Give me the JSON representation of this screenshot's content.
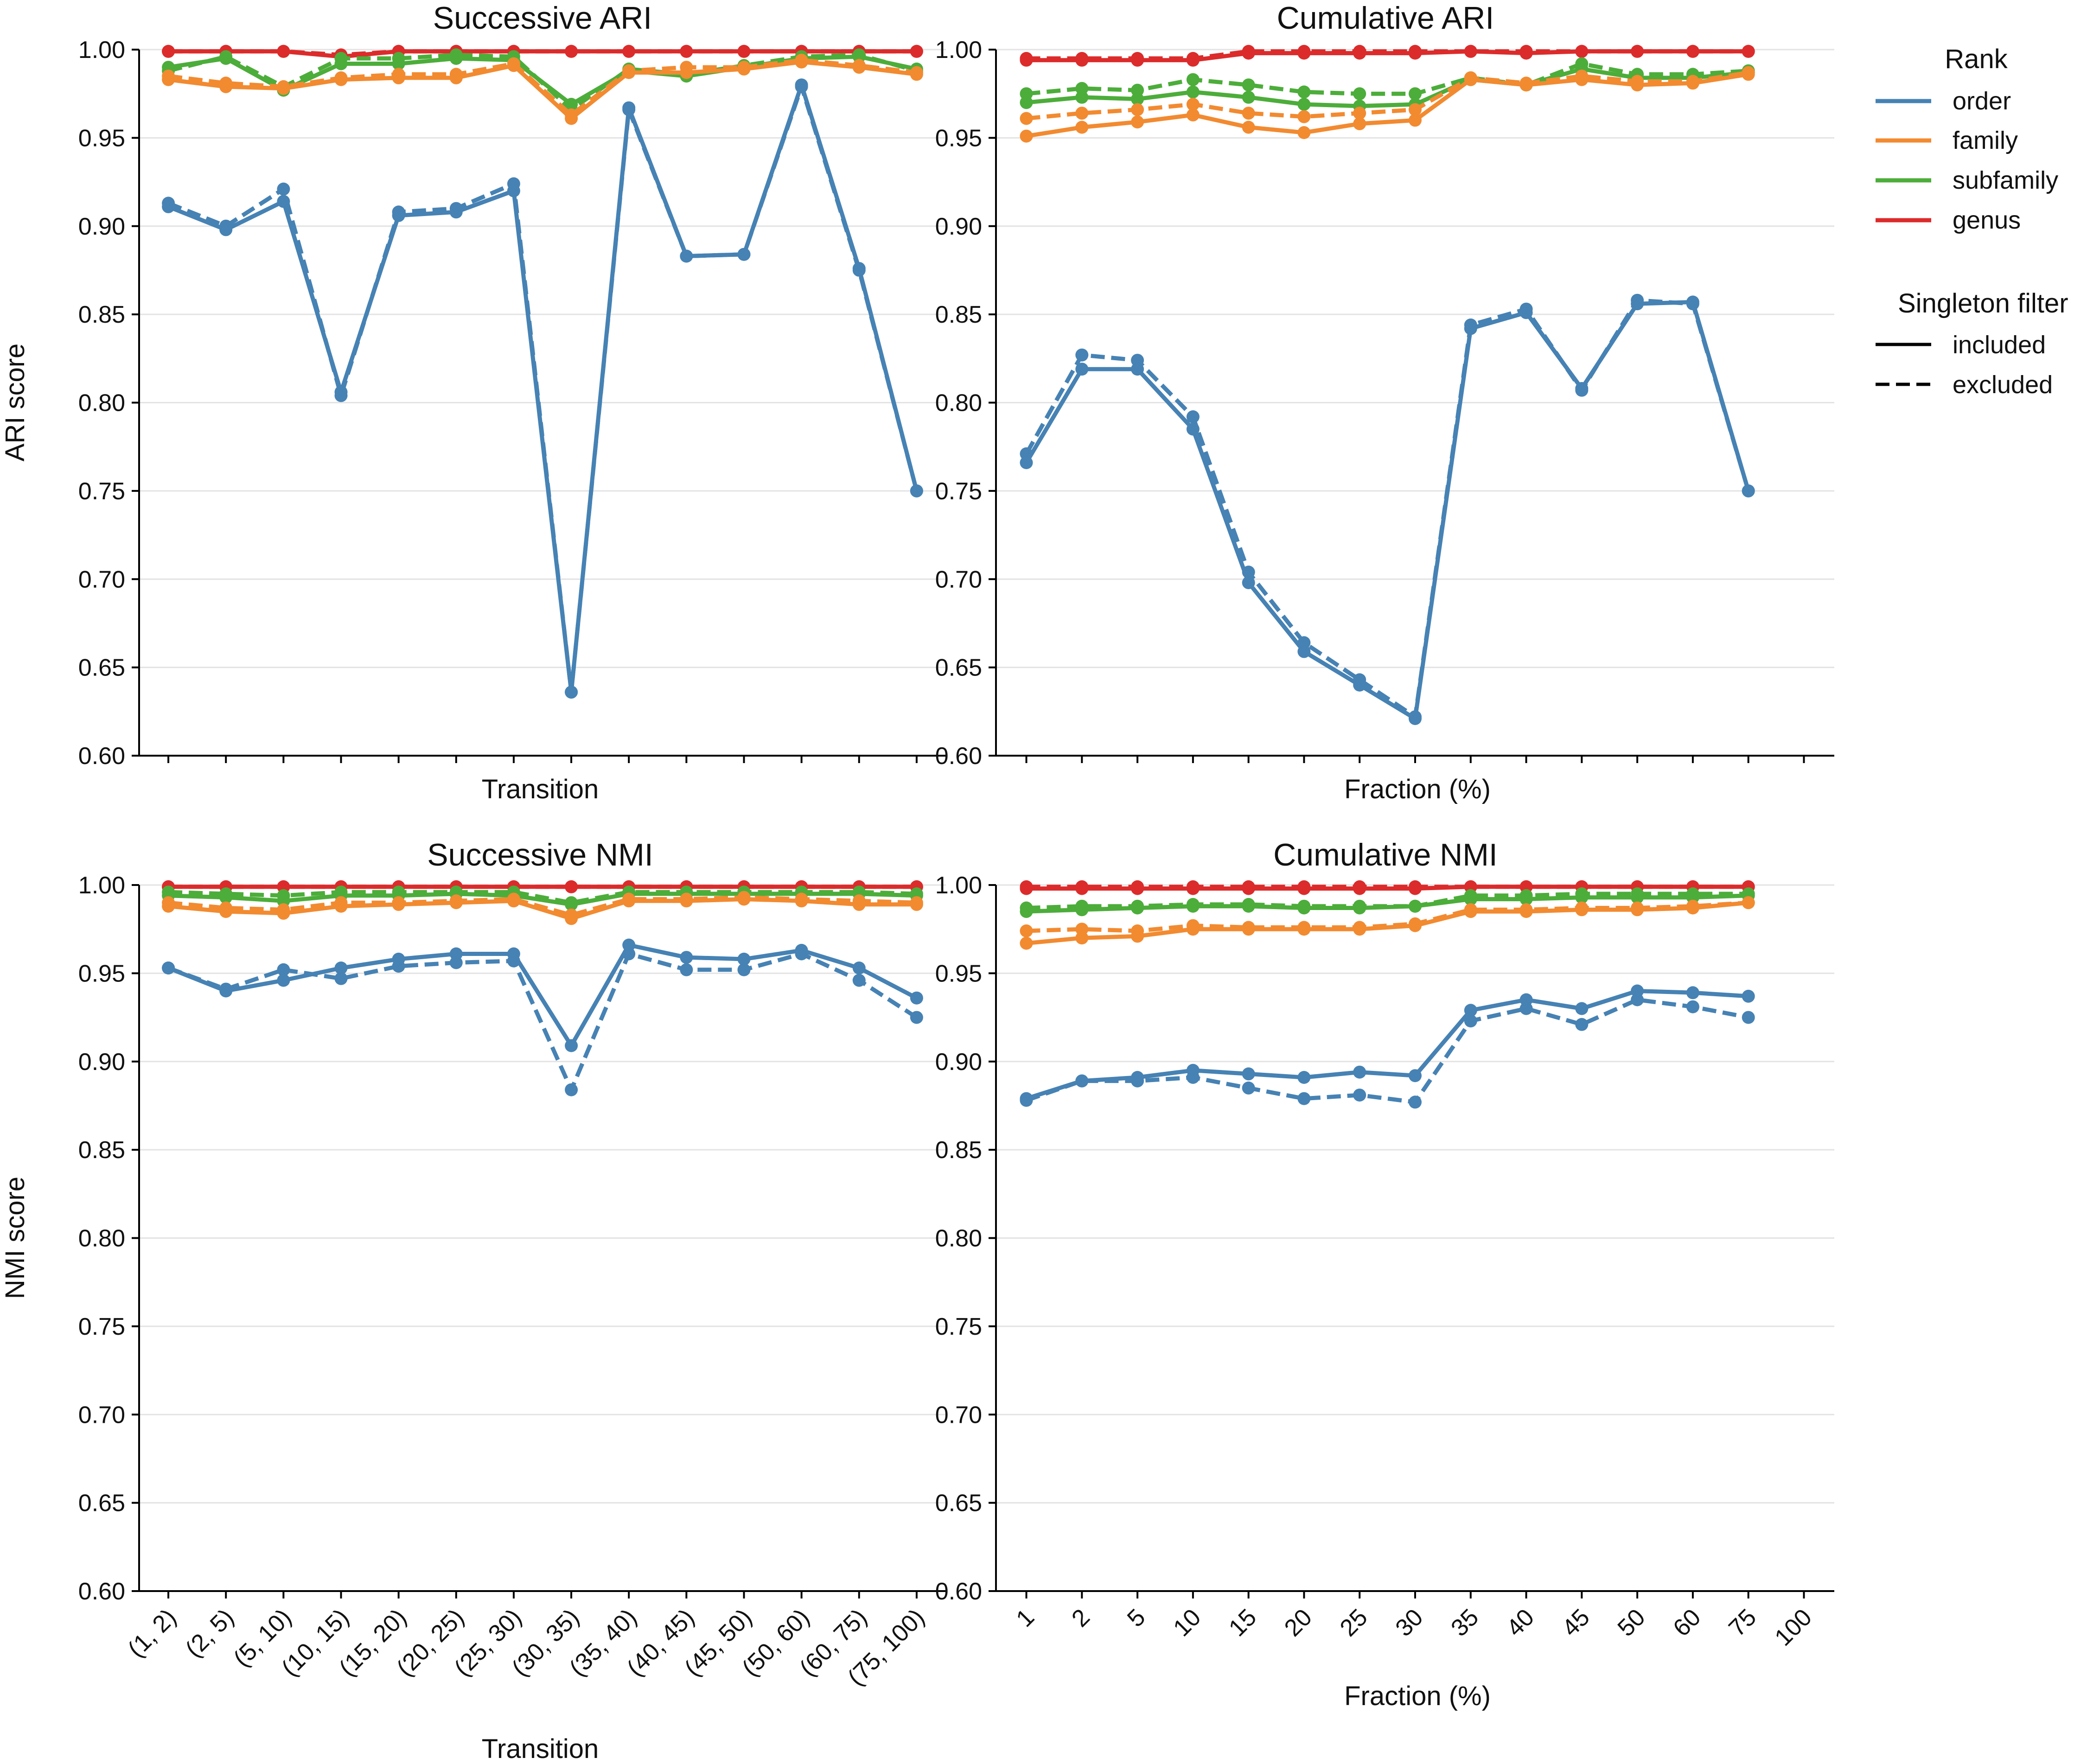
{
  "colors": {
    "order": "#4682b4",
    "family": "#f28a30",
    "subfamily": "#4cad3a",
    "genus": "#dc2b2b"
  },
  "legend": {
    "rank_title": "Rank",
    "ranks": [
      "order",
      "family",
      "subfamily",
      "genus"
    ],
    "filter_title": "Singleton filter",
    "filters": [
      "included",
      "excluded"
    ]
  },
  "chart_data": [
    {
      "id": "successive_ari",
      "type": "line",
      "title": "Successive ARI",
      "xlabel": "Transition",
      "ylabel": "ARI score",
      "ylim": [
        0.6,
        1.0
      ],
      "yticks": [
        "0.60",
        "0.65",
        "0.70",
        "0.75",
        "0.80",
        "0.85",
        "0.90",
        "0.95",
        "1.00"
      ],
      "categories": [
        "(1, 2)",
        "(2, 5)",
        "(5, 10)",
        "(10, 15)",
        "(15, 20)",
        "(20, 25)",
        "(25, 30)",
        "(30, 35)",
        "(35, 40)",
        "(40, 45)",
        "(45, 50)",
        "(50, 60)",
        "(60, 75)",
        "(75, 100)"
      ],
      "show_xticklabels": false,
      "series": [
        {
          "rank": "order",
          "filter": "included",
          "values": [
            0.911,
            0.898,
            0.914,
            0.806,
            0.906,
            0.908,
            0.92,
            0.636,
            0.967,
            0.883,
            0.884,
            0.98,
            0.876,
            0.75
          ]
        },
        {
          "rank": "order",
          "filter": "excluded",
          "values": [
            0.913,
            0.9,
            0.921,
            0.804,
            0.908,
            0.91,
            0.924,
            0.636,
            0.966,
            0.883,
            0.884,
            0.979,
            0.875,
            0.75
          ]
        },
        {
          "rank": "family",
          "filter": "included",
          "values": [
            0.983,
            0.979,
            0.978,
            0.983,
            0.984,
            0.984,
            0.991,
            0.961,
            0.987,
            0.987,
            0.989,
            0.993,
            0.99,
            0.986
          ]
        },
        {
          "rank": "family",
          "filter": "excluded",
          "values": [
            0.985,
            0.981,
            0.979,
            0.984,
            0.986,
            0.986,
            0.992,
            0.963,
            0.988,
            0.99,
            0.99,
            0.994,
            0.991,
            0.987
          ]
        },
        {
          "rank": "subfamily",
          "filter": "included",
          "values": [
            0.99,
            0.995,
            0.977,
            0.992,
            0.992,
            0.995,
            0.994,
            0.969,
            0.988,
            0.985,
            0.99,
            0.995,
            0.996,
            0.989
          ]
        },
        {
          "rank": "subfamily",
          "filter": "excluded",
          "values": [
            0.988,
            0.996,
            0.979,
            0.995,
            0.995,
            0.997,
            0.996,
            0.966,
            0.989,
            0.986,
            0.991,
            0.996,
            0.997,
            0.988
          ]
        },
        {
          "rank": "genus",
          "filter": "included",
          "values": [
            0.999,
            0.999,
            0.999,
            0.996,
            0.999,
            0.999,
            0.999,
            0.999,
            0.999,
            0.999,
            0.999,
            0.999,
            0.999,
            0.999
          ]
        },
        {
          "rank": "genus",
          "filter": "excluded",
          "values": [
            0.999,
            0.999,
            0.999,
            0.997,
            0.999,
            0.999,
            0.999,
            0.999,
            0.999,
            0.999,
            0.999,
            0.999,
            0.999,
            0.999
          ]
        }
      ]
    },
    {
      "id": "cumulative_ari",
      "type": "line",
      "title": "Cumulative ARI",
      "xlabel": "Fraction (%)",
      "ylabel": "",
      "ylim": [
        0.6,
        1.0
      ],
      "yticks": [
        "0.60",
        "0.65",
        "0.70",
        "0.75",
        "0.80",
        "0.85",
        "0.90",
        "0.95",
        "1.00"
      ],
      "categories": [
        "1",
        "2",
        "5",
        "10",
        "15",
        "20",
        "25",
        "30",
        "35",
        "40",
        "45",
        "50",
        "60",
        "75",
        "100"
      ],
      "show_xticklabels": false,
      "series": [
        {
          "rank": "order",
          "filter": "included",
          "values": [
            0.766,
            0.819,
            0.819,
            0.785,
            0.698,
            0.659,
            0.64,
            0.621,
            0.842,
            0.851,
            0.808,
            0.856,
            0.857,
            0.75,
            null
          ]
        },
        {
          "rank": "order",
          "filter": "excluded",
          "values": [
            0.771,
            0.827,
            0.824,
            0.792,
            0.704,
            0.664,
            0.643,
            0.622,
            0.844,
            0.853,
            0.807,
            0.858,
            0.856,
            0.75,
            null
          ]
        },
        {
          "rank": "family",
          "filter": "included",
          "values": [
            0.951,
            0.956,
            0.959,
            0.963,
            0.956,
            0.953,
            0.958,
            0.96,
            0.983,
            0.98,
            0.983,
            0.98,
            0.981,
            0.986,
            null
          ]
        },
        {
          "rank": "family",
          "filter": "excluded",
          "values": [
            0.961,
            0.964,
            0.966,
            0.969,
            0.964,
            0.962,
            0.964,
            0.966,
            0.984,
            0.981,
            0.985,
            0.982,
            0.982,
            0.987,
            null
          ]
        },
        {
          "rank": "subfamily",
          "filter": "included",
          "values": [
            0.97,
            0.973,
            0.972,
            0.976,
            0.973,
            0.969,
            0.968,
            0.969,
            0.983,
            0.98,
            0.989,
            0.984,
            0.984,
            0.987,
            null
          ]
        },
        {
          "rank": "subfamily",
          "filter": "excluded",
          "values": [
            0.975,
            0.978,
            0.977,
            0.983,
            0.98,
            0.976,
            0.975,
            0.975,
            0.984,
            0.98,
            0.992,
            0.986,
            0.986,
            0.988,
            null
          ]
        },
        {
          "rank": "genus",
          "filter": "included",
          "values": [
            0.994,
            0.994,
            0.994,
            0.994,
            0.998,
            0.998,
            0.998,
            0.998,
            0.999,
            0.998,
            0.999,
            0.999,
            0.999,
            0.999,
            null
          ]
        },
        {
          "rank": "genus",
          "filter": "excluded",
          "values": [
            0.995,
            0.995,
            0.995,
            0.995,
            0.999,
            0.999,
            0.999,
            0.999,
            0.999,
            0.999,
            0.999,
            0.999,
            0.999,
            0.999,
            null
          ]
        }
      ]
    },
    {
      "id": "successive_nmi",
      "type": "line",
      "title": "Successive NMI",
      "xlabel": "Transition",
      "ylabel": "NMI score",
      "ylim": [
        0.6,
        1.0
      ],
      "yticks": [
        "0.60",
        "0.65",
        "0.70",
        "0.75",
        "0.80",
        "0.85",
        "0.90",
        "0.95",
        "1.00"
      ],
      "categories": [
        "(1, 2)",
        "(2, 5)",
        "(5, 10)",
        "(10, 15)",
        "(15, 20)",
        "(20, 25)",
        "(25, 30)",
        "(30, 35)",
        "(35, 40)",
        "(40, 45)",
        "(45, 50)",
        "(50, 60)",
        "(60, 75)",
        "(75, 100)"
      ],
      "show_xticklabels": true,
      "series": [
        {
          "rank": "order",
          "filter": "included",
          "values": [
            0.953,
            0.94,
            0.946,
            0.953,
            0.958,
            0.961,
            0.961,
            0.909,
            0.966,
            0.959,
            0.958,
            0.963,
            0.953,
            0.936
          ]
        },
        {
          "rank": "order",
          "filter": "excluded",
          "values": [
            0.953,
            0.941,
            0.952,
            0.947,
            0.954,
            0.956,
            0.957,
            0.884,
            0.961,
            0.952,
            0.952,
            0.961,
            0.946,
            0.925
          ]
        },
        {
          "rank": "family",
          "filter": "included",
          "values": [
            0.988,
            0.985,
            0.984,
            0.988,
            0.989,
            0.99,
            0.991,
            0.981,
            0.991,
            0.991,
            0.992,
            0.991,
            0.989,
            0.989
          ]
        },
        {
          "rank": "family",
          "filter": "excluded",
          "values": [
            0.99,
            0.987,
            0.986,
            0.99,
            0.99,
            0.991,
            0.992,
            0.983,
            0.992,
            0.992,
            0.993,
            0.992,
            0.991,
            0.99
          ]
        },
        {
          "rank": "subfamily",
          "filter": "included",
          "values": [
            0.994,
            0.993,
            0.991,
            0.994,
            0.994,
            0.995,
            0.994,
            0.989,
            0.995,
            0.995,
            0.995,
            0.995,
            0.995,
            0.994
          ]
        },
        {
          "rank": "subfamily",
          "filter": "excluded",
          "values": [
            0.996,
            0.995,
            0.994,
            0.996,
            0.996,
            0.996,
            0.996,
            0.99,
            0.996,
            0.996,
            0.996,
            0.996,
            0.996,
            0.995
          ]
        },
        {
          "rank": "genus",
          "filter": "included",
          "values": [
            0.999,
            0.999,
            0.999,
            0.999,
            0.999,
            0.999,
            0.999,
            0.999,
            0.999,
            0.999,
            0.999,
            0.999,
            0.999,
            0.999
          ]
        },
        {
          "rank": "genus",
          "filter": "excluded",
          "values": [
            0.999,
            0.999,
            0.999,
            0.999,
            0.999,
            0.999,
            0.999,
            0.999,
            0.999,
            0.999,
            0.999,
            0.999,
            0.999,
            0.999
          ]
        }
      ]
    },
    {
      "id": "cumulative_nmi",
      "type": "line",
      "title": "Cumulative NMI",
      "xlabel": "Fraction (%)",
      "ylabel": "",
      "ylim": [
        0.6,
        1.0
      ],
      "yticks": [
        "0.60",
        "0.65",
        "0.70",
        "0.75",
        "0.80",
        "0.85",
        "0.90",
        "0.95",
        "1.00"
      ],
      "categories": [
        "1",
        "2",
        "5",
        "10",
        "15",
        "20",
        "25",
        "30",
        "35",
        "40",
        "45",
        "50",
        "60",
        "75",
        "100"
      ],
      "show_xticklabels": true,
      "series": [
        {
          "rank": "order",
          "filter": "included",
          "values": [
            0.879,
            0.889,
            0.891,
            0.895,
            0.893,
            0.891,
            0.894,
            0.892,
            0.929,
            0.935,
            0.93,
            0.94,
            0.939,
            0.937,
            null
          ]
        },
        {
          "rank": "order",
          "filter": "excluded",
          "values": [
            0.878,
            0.889,
            0.889,
            0.891,
            0.885,
            0.879,
            0.881,
            0.877,
            0.923,
            0.93,
            0.921,
            0.935,
            0.931,
            0.925,
            null
          ]
        },
        {
          "rank": "family",
          "filter": "included",
          "values": [
            0.967,
            0.97,
            0.971,
            0.975,
            0.975,
            0.975,
            0.975,
            0.977,
            0.985,
            0.985,
            0.986,
            0.986,
            0.987,
            0.99,
            null
          ]
        },
        {
          "rank": "family",
          "filter": "excluded",
          "values": [
            0.974,
            0.975,
            0.974,
            0.977,
            0.976,
            0.976,
            0.976,
            0.978,
            0.986,
            0.986,
            0.987,
            0.987,
            0.988,
            0.99,
            null
          ]
        },
        {
          "rank": "subfamily",
          "filter": "included",
          "values": [
            0.985,
            0.986,
            0.987,
            0.988,
            0.988,
            0.987,
            0.987,
            0.988,
            0.992,
            0.992,
            0.993,
            0.993,
            0.993,
            0.994,
            null
          ]
        },
        {
          "rank": "subfamily",
          "filter": "excluded",
          "values": [
            0.987,
            0.988,
            0.988,
            0.989,
            0.989,
            0.988,
            0.988,
            0.988,
            0.994,
            0.994,
            0.995,
            0.995,
            0.995,
            0.995,
            null
          ]
        },
        {
          "rank": "genus",
          "filter": "included",
          "values": [
            0.998,
            0.998,
            0.998,
            0.998,
            0.998,
            0.998,
            0.998,
            0.998,
            0.999,
            0.999,
            0.999,
            0.999,
            0.999,
            0.999,
            null
          ]
        },
        {
          "rank": "genus",
          "filter": "excluded",
          "values": [
            0.999,
            0.999,
            0.999,
            0.999,
            0.999,
            0.999,
            0.999,
            0.999,
            0.999,
            0.999,
            0.999,
            0.999,
            0.999,
            0.999,
            null
          ]
        }
      ]
    }
  ]
}
